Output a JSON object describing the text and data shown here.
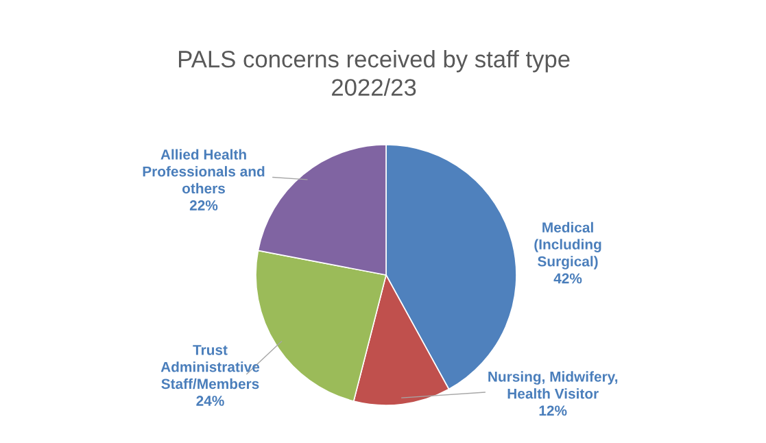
{
  "chart_data": {
    "type": "pie",
    "title": "PALS concerns received by staff type\n2022/23",
    "categories": [
      "Medical\n(Including\nSurgical)",
      "Nursing, Midwifery,\nHealth Visitor",
      "Trust\nAdministrative\nStaff/Members",
      "Allied Health\nProfessionals and\nothers"
    ],
    "values": [
      42,
      12,
      24,
      22
    ],
    "colors": [
      "#4f81bd",
      "#c0504d",
      "#9bbb59",
      "#8064a2"
    ],
    "value_labels": [
      "42%",
      "12%",
      "24%",
      "22%"
    ]
  }
}
